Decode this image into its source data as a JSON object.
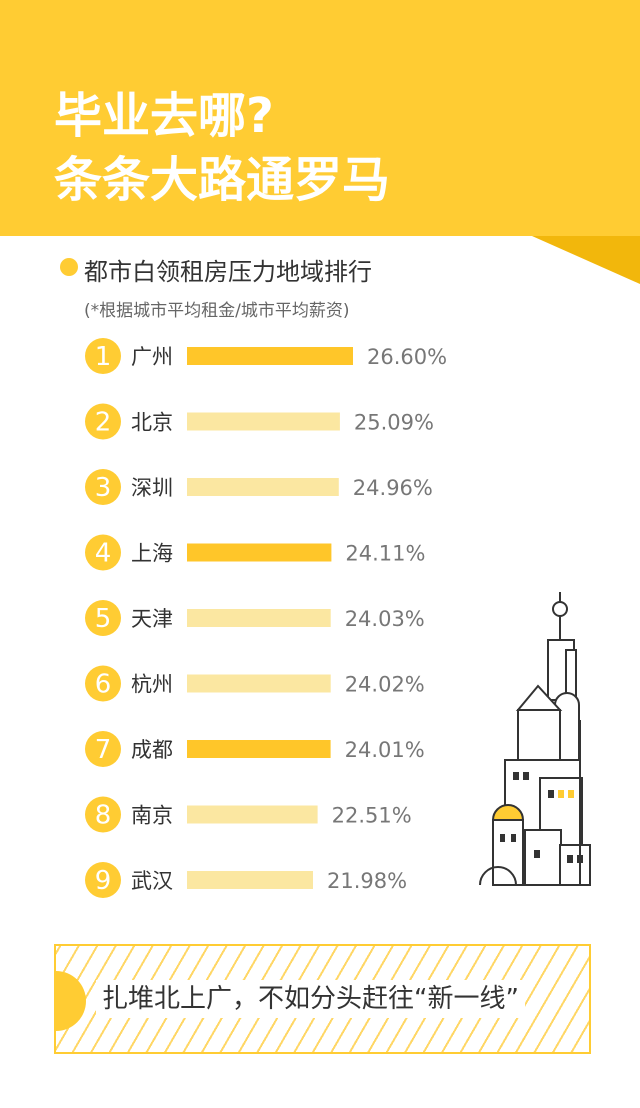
{
  "header": {
    "title_line1": "毕业去哪?",
    "title_line2": "条条大路通罗马"
  },
  "subtitle": "都市白领租房压力地域排行",
  "note": "(*根据城市平均租金/城市平均薪资)",
  "chart_data": {
    "type": "bar",
    "orientation": "horizontal",
    "ranks": [
      "1",
      "2",
      "3",
      "4",
      "5",
      "6",
      "7",
      "8",
      "9"
    ],
    "categories": [
      "广州",
      "北京",
      "深圳",
      "上海",
      "天津",
      "杭州",
      "成都",
      "南京",
      "武汉"
    ],
    "values": [
      26.6,
      25.09,
      24.96,
      24.11,
      24.03,
      24.02,
      24.01,
      22.51,
      21.98
    ],
    "value_labels": [
      "26.60%",
      "25.09%",
      "24.96%",
      "24.11%",
      "24.03%",
      "24.02%",
      "24.01%",
      "22.51%",
      "21.98%"
    ],
    "highlight": [
      true,
      false,
      false,
      true,
      false,
      false,
      true,
      false,
      false
    ],
    "colors": {
      "highlight": "#FFC629",
      "normal": "#FBE7A1",
      "badge": "#FFCC33"
    },
    "title": "",
    "xlabel": "",
    "ylabel": ""
  },
  "banner": {
    "text": "扎堆北上广，不如分头赶往“新一线”"
  },
  "colors": {
    "brand": "#FFCC33",
    "fold": "#F2B70C"
  }
}
